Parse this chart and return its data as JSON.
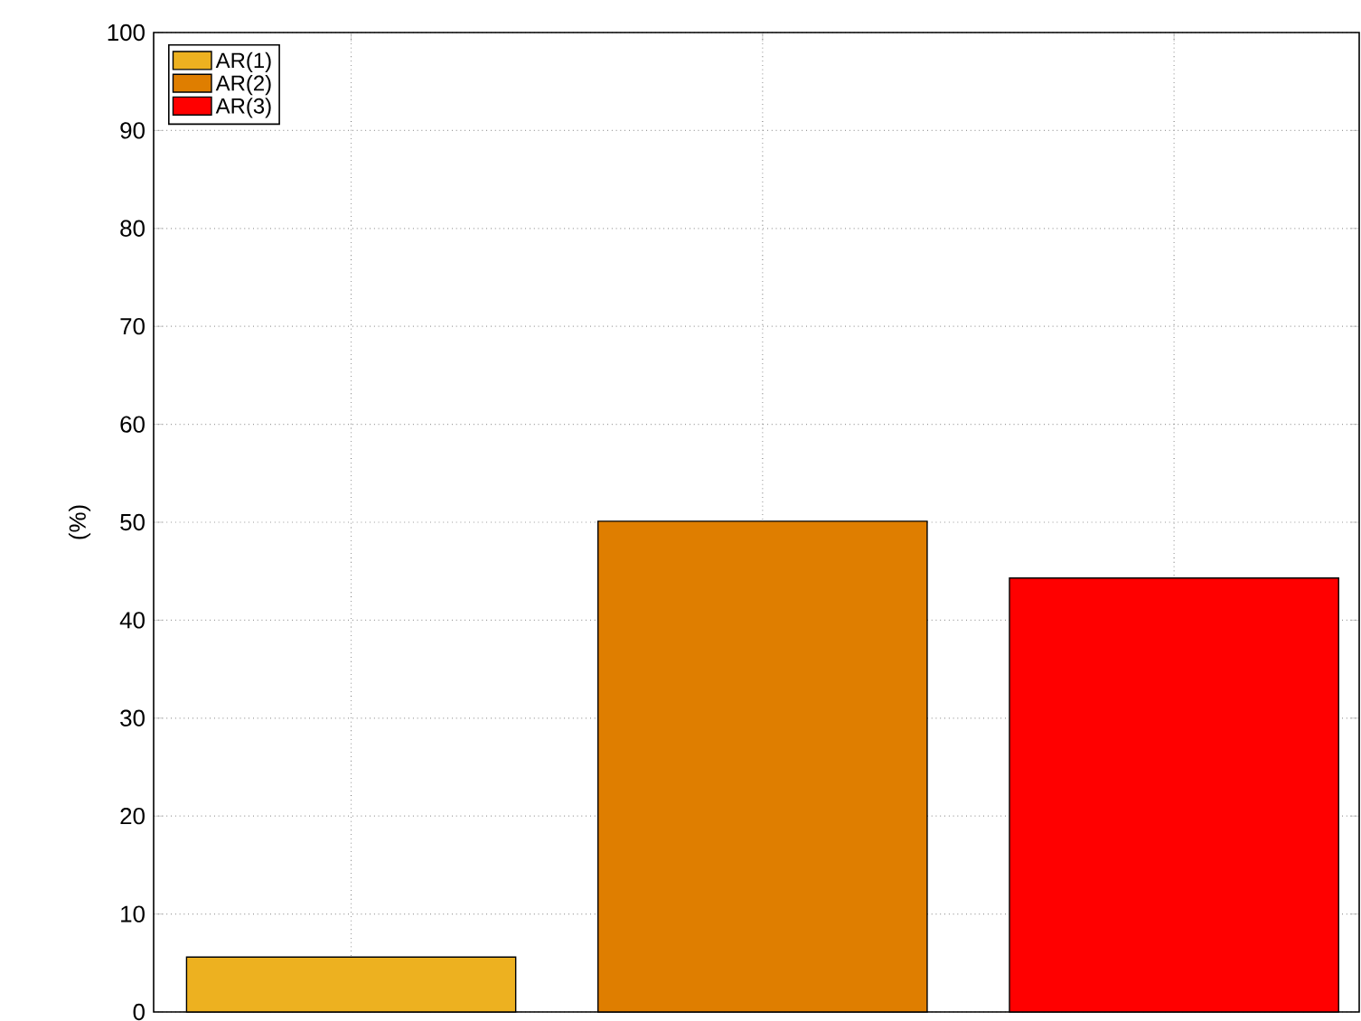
{
  "chart_data": {
    "type": "bar",
    "ylabel": "(%)",
    "categories": [
      null,
      null,
      null
    ],
    "series": [
      {
        "name": "AR(1)",
        "color": "#edb120",
        "values": [
          5.6,
          null,
          null
        ]
      },
      {
        "name": "AR(2)",
        "color": "#df7e00",
        "values": [
          null,
          50.1,
          null
        ]
      },
      {
        "name": "AR(3)",
        "color": "#ff0000",
        "values": [
          null,
          null,
          44.3
        ]
      }
    ],
    "ylim": [
      0,
      100
    ],
    "yticks": [
      0,
      10,
      20,
      30,
      40,
      50,
      60,
      70,
      80,
      90,
      100
    ],
    "grid": true,
    "legend": "top left"
  }
}
